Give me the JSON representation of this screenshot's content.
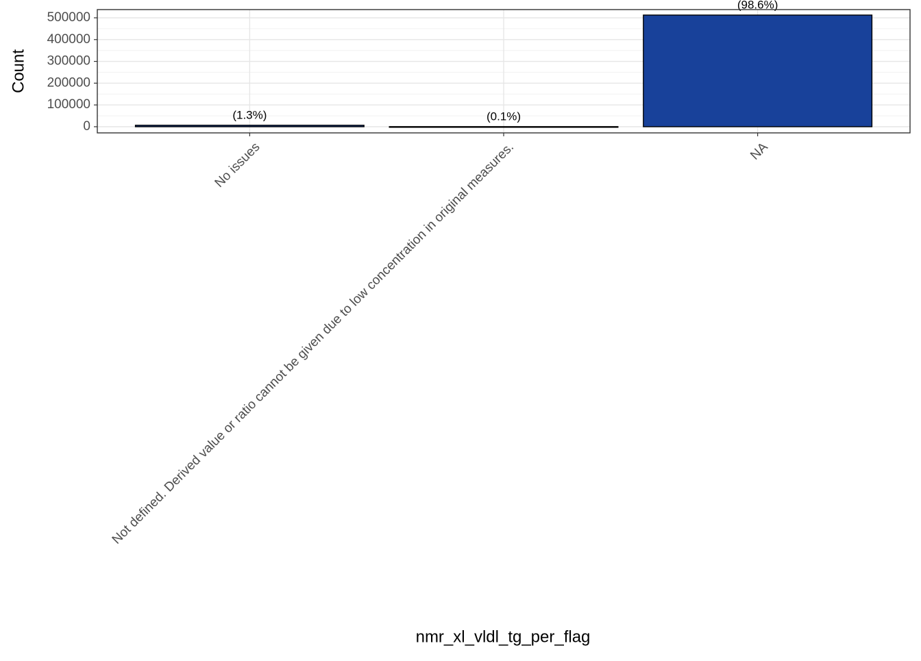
{
  "chart_data": {
    "type": "bar",
    "x_label": "nmr_xl_vldl_tg_per_flag",
    "y_label": "Count",
    "categories": [
      "No issues",
      "Not defined. Derived value or ratio cannot be given due to low concentration in original measures.",
      "NA"
    ],
    "values": [
      6700,
      500,
      512600
    ],
    "value_labels": [
      "(1.3%)",
      "(0.1%)",
      "(98.6%)"
    ],
    "color": "#18419a",
    "ylim": [
      -28300,
      537700
    ],
    "yticks": [
      0,
      100000,
      200000,
      300000,
      400000,
      500000
    ],
    "y_minor_ticks": [
      50000,
      150000,
      250000,
      350000,
      450000
    ],
    "grid": true
  }
}
